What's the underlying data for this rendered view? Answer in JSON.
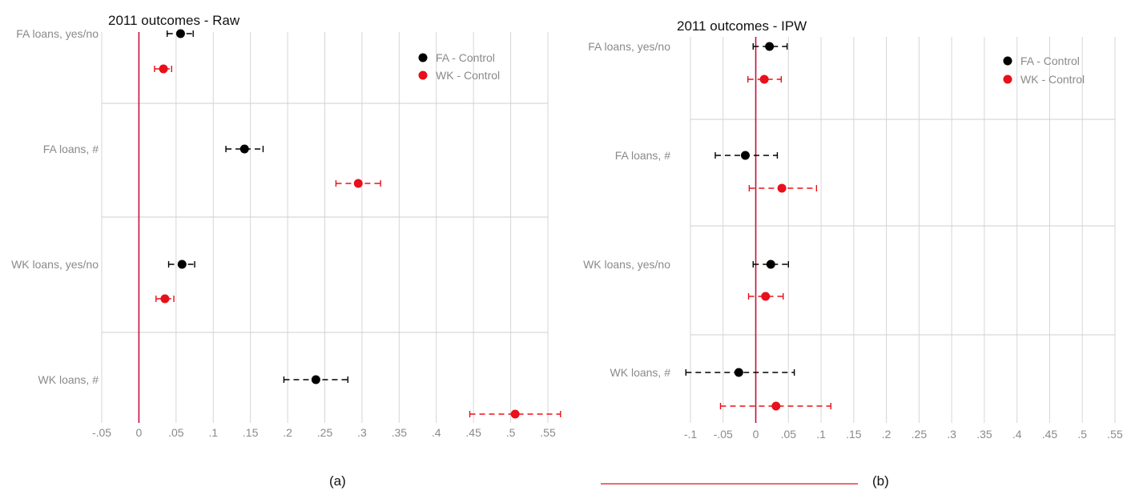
{
  "chart_data": [
    {
      "type": "scatter",
      "title": "2011 outcomes - Raw",
      "panel_label": "(a)",
      "categories": [
        "FA loans, yes/no",
        "FA loans, #",
        "WK loans, yes/no",
        "WK loans, #"
      ],
      "xlim": [
        -0.05,
        0.55
      ],
      "xticks": [
        -0.05,
        0,
        0.05,
        0.1,
        0.15,
        0.2,
        0.25,
        0.3,
        0.35,
        0.4,
        0.45,
        0.5,
        0.55
      ],
      "xtick_labels": [
        "-.05",
        "0",
        ".05",
        ".1",
        ".15",
        ".2",
        ".25",
        ".3",
        ".35",
        ".4",
        ".45",
        ".5",
        ".55"
      ],
      "reference_line_x": 0,
      "legend_position": "top-right",
      "series": [
        {
          "name": "FA - Control",
          "color": "#000000",
          "values": [
            0.056,
            0.142,
            0.058,
            0.238
          ],
          "ci_low": [
            0.038,
            0.117,
            0.04,
            0.195
          ],
          "ci_high": [
            0.073,
            0.167,
            0.075,
            0.281
          ]
        },
        {
          "name": "WK - Control",
          "color": "#e8101a",
          "values": [
            0.033,
            0.295,
            0.035,
            0.506
          ],
          "ci_low": [
            0.021,
            0.265,
            0.023,
            0.445
          ],
          "ci_high": [
            0.044,
            0.325,
            0.047,
            0.567
          ]
        }
      ]
    },
    {
      "type": "scatter",
      "title": "2011 outcomes - IPW",
      "panel_label": "(b)",
      "categories": [
        "FA loans, yes/no",
        "FA loans, #",
        "WK loans, yes/no",
        "WK loans, #"
      ],
      "xlim": [
        -0.1,
        0.55
      ],
      "xticks": [
        -0.1,
        -0.05,
        0,
        0.05,
        0.1,
        0.15,
        0.2,
        0.25,
        0.3,
        0.35,
        0.4,
        0.45,
        0.5,
        0.55
      ],
      "xtick_labels": [
        "-.1",
        "-.05",
        "0",
        ".05",
        ".1",
        ".15",
        ".2",
        ".25",
        ".3",
        ".35",
        ".4",
        ".45",
        ".5",
        ".55"
      ],
      "reference_line_x": 0,
      "legend_position": "top-right",
      "series": [
        {
          "name": "FA - Control",
          "color": "#000000",
          "values": [
            0.021,
            -0.016,
            0.023,
            -0.026
          ],
          "ci_low": [
            -0.004,
            -0.062,
            -0.004,
            -0.107
          ],
          "ci_high": [
            0.048,
            0.033,
            0.05,
            0.059
          ]
        },
        {
          "name": "WK - Control",
          "color": "#e8101a",
          "values": [
            0.013,
            0.04,
            0.015,
            0.031
          ],
          "ci_low": [
            -0.012,
            -0.01,
            -0.011,
            -0.054
          ],
          "ci_high": [
            0.039,
            0.093,
            0.042,
            0.115
          ]
        }
      ]
    }
  ]
}
